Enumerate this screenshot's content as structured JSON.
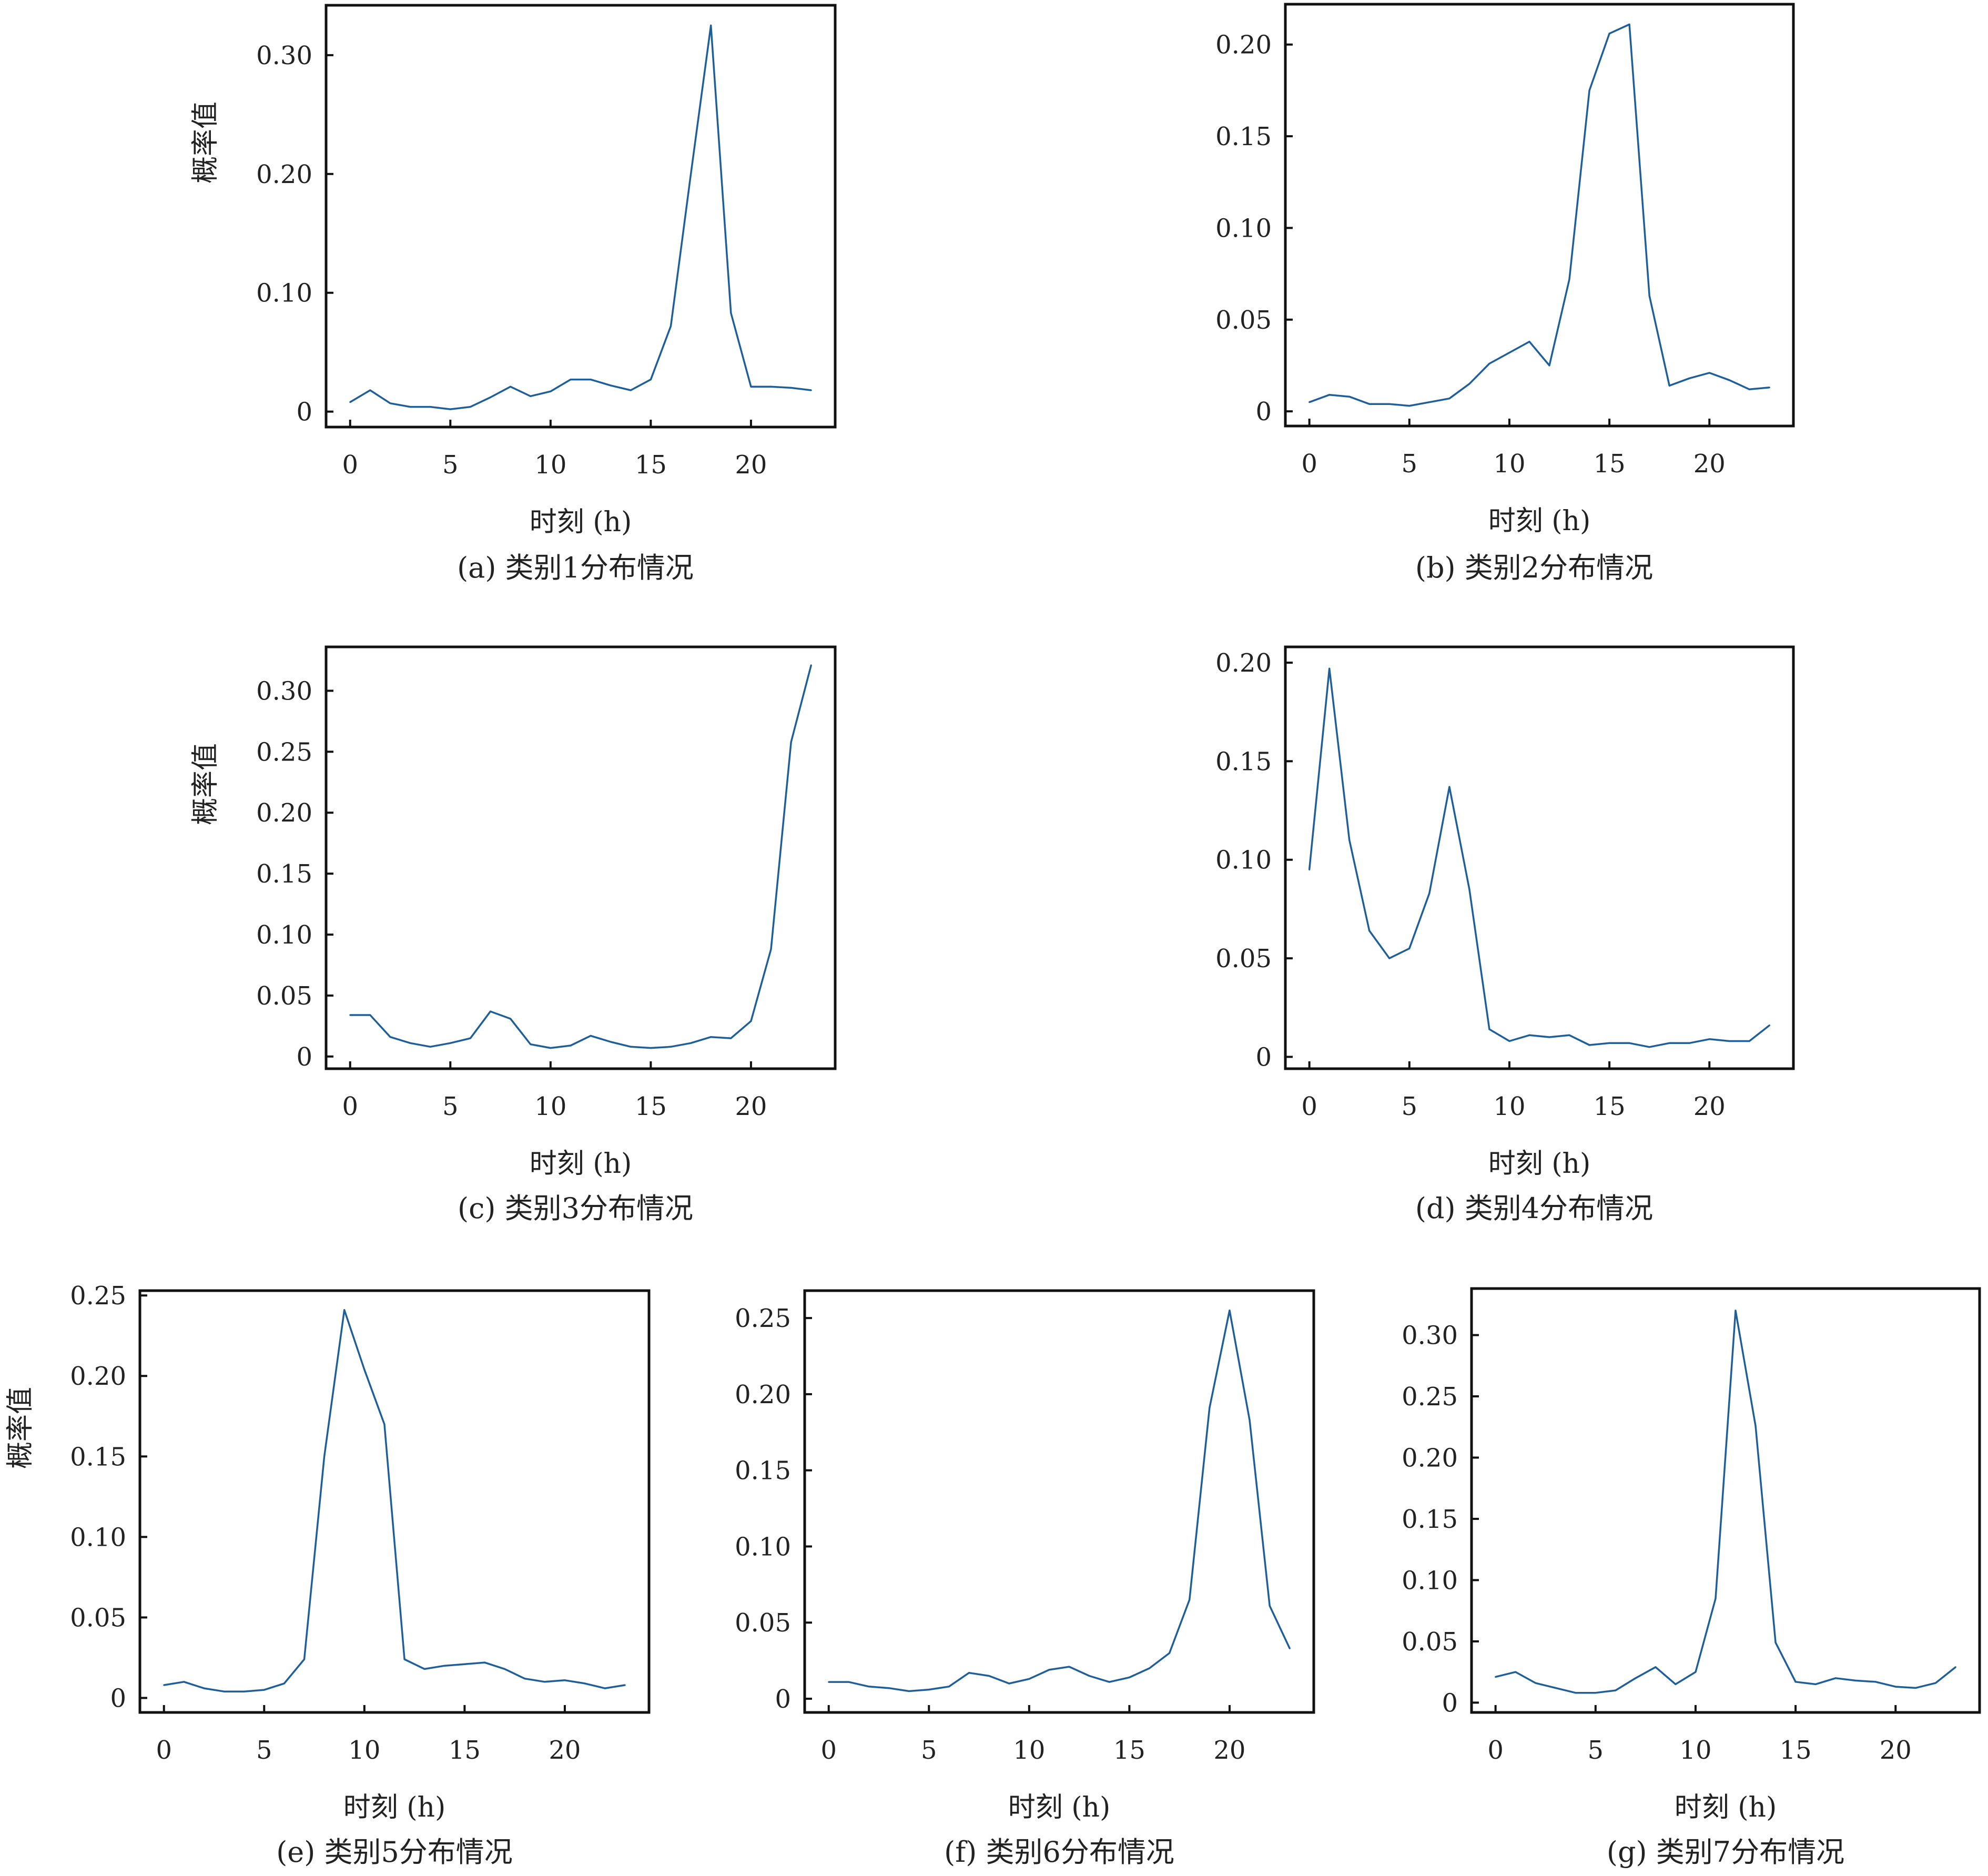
{
  "figure": {
    "ylabel": "概率值",
    "xlabel": "时刻 (h)"
  },
  "chart_data": [
    {
      "type": "line",
      "caption": "(a) 类别1分布情况",
      "xlabel": "时刻 (h)",
      "ylabel": "概率值",
      "xlim": [
        -1.2,
        24.2
      ],
      "ylim": [
        -0.013,
        0.342
      ],
      "xticks": [
        {
          "value": 0,
          "label": "0"
        },
        {
          "value": 5,
          "label": "5"
        },
        {
          "value": 10,
          "label": "10"
        },
        {
          "value": 15,
          "label": "15"
        },
        {
          "value": 20,
          "label": "20"
        }
      ],
      "yticks": [
        {
          "value": 0,
          "label": "0"
        },
        {
          "value": 0.1,
          "label": "0.10"
        },
        {
          "value": 0.2,
          "label": "0.20"
        },
        {
          "value": 0.3,
          "label": "0.30"
        }
      ],
      "x": [
        0,
        1,
        2,
        3,
        4,
        5,
        6,
        7,
        8,
        9,
        10,
        11,
        12,
        13,
        14,
        15,
        16,
        17,
        18,
        19,
        20,
        21,
        22,
        23
      ],
      "values": [
        0.008,
        0.018,
        0.007,
        0.004,
        0.004,
        0.002,
        0.004,
        0.012,
        0.021,
        0.013,
        0.017,
        0.027,
        0.027,
        0.022,
        0.018,
        0.027,
        0.072,
        0.2,
        0.325,
        0.083,
        0.021,
        0.021,
        0.02,
        0.018
      ],
      "color": "#1f5f99"
    },
    {
      "type": "line",
      "caption": "(b) 类别2分布情况",
      "xlabel": "时刻 (h)",
      "ylabel": "",
      "xlim": [
        -1.2,
        24.2
      ],
      "ylim": [
        -0.008,
        0.222
      ],
      "xticks": [
        {
          "value": 0,
          "label": "0"
        },
        {
          "value": 5,
          "label": "5"
        },
        {
          "value": 10,
          "label": "10"
        },
        {
          "value": 15,
          "label": "15"
        },
        {
          "value": 20,
          "label": "20"
        }
      ],
      "yticks": [
        {
          "value": 0,
          "label": "0"
        },
        {
          "value": 0.05,
          "label": "0.05"
        },
        {
          "value": 0.1,
          "label": "0.10"
        },
        {
          "value": 0.15,
          "label": "0.15"
        },
        {
          "value": 0.2,
          "label": "0.20"
        }
      ],
      "x": [
        0,
        1,
        2,
        3,
        4,
        5,
        6,
        7,
        8,
        9,
        10,
        11,
        12,
        13,
        14,
        15,
        16,
        17,
        18,
        19,
        20,
        21,
        22,
        23
      ],
      "values": [
        0.005,
        0.009,
        0.008,
        0.004,
        0.004,
        0.003,
        0.005,
        0.007,
        0.015,
        0.026,
        0.032,
        0.038,
        0.025,
        0.072,
        0.175,
        0.206,
        0.211,
        0.063,
        0.014,
        0.018,
        0.021,
        0.017,
        0.012,
        0.013
      ],
      "color": "#1f5f99"
    },
    {
      "type": "line",
      "caption": "(c) 类别3分布情况",
      "xlabel": "时刻 (h)",
      "ylabel": "概率值",
      "xlim": [
        -1.2,
        24.2
      ],
      "ylim": [
        -0.01,
        0.336
      ],
      "xticks": [
        {
          "value": 0,
          "label": "0"
        },
        {
          "value": 5,
          "label": "5"
        },
        {
          "value": 10,
          "label": "10"
        },
        {
          "value": 15,
          "label": "15"
        },
        {
          "value": 20,
          "label": "20"
        }
      ],
      "yticks": [
        {
          "value": 0,
          "label": "0"
        },
        {
          "value": 0.05,
          "label": "0.05"
        },
        {
          "value": 0.1,
          "label": "0.10"
        },
        {
          "value": 0.15,
          "label": "0.15"
        },
        {
          "value": 0.2,
          "label": "0.20"
        },
        {
          "value": 0.25,
          "label": "0.25"
        },
        {
          "value": 0.3,
          "label": "0.30"
        }
      ],
      "x": [
        0,
        1,
        2,
        3,
        4,
        5,
        6,
        7,
        8,
        9,
        10,
        11,
        12,
        13,
        14,
        15,
        16,
        17,
        18,
        19,
        20,
        21,
        22,
        23
      ],
      "values": [
        0.034,
        0.034,
        0.016,
        0.011,
        0.008,
        0.011,
        0.015,
        0.037,
        0.031,
        0.01,
        0.007,
        0.009,
        0.017,
        0.012,
        0.008,
        0.007,
        0.008,
        0.011,
        0.016,
        0.015,
        0.029,
        0.088,
        0.258,
        0.321
      ],
      "color": "#1f5f99"
    },
    {
      "type": "line",
      "caption": "(d) 类别4分布情况",
      "xlabel": "时刻 (h)",
      "ylabel": "",
      "xlim": [
        -1.2,
        24.2
      ],
      "ylim": [
        -0.006,
        0.208
      ],
      "xticks": [
        {
          "value": 0,
          "label": "0"
        },
        {
          "value": 5,
          "label": "5"
        },
        {
          "value": 10,
          "label": "10"
        },
        {
          "value": 15,
          "label": "15"
        },
        {
          "value": 20,
          "label": "20"
        }
      ],
      "yticks": [
        {
          "value": 0,
          "label": "0"
        },
        {
          "value": 0.05,
          "label": "0.05"
        },
        {
          "value": 0.1,
          "label": "0.10"
        },
        {
          "value": 0.15,
          "label": "0.15"
        },
        {
          "value": 0.2,
          "label": "0.20"
        }
      ],
      "x": [
        0,
        1,
        2,
        3,
        4,
        5,
        6,
        7,
        8,
        9,
        10,
        11,
        12,
        13,
        14,
        15,
        16,
        17,
        18,
        19,
        20,
        21,
        22,
        23
      ],
      "values": [
        0.095,
        0.197,
        0.11,
        0.064,
        0.05,
        0.055,
        0.083,
        0.137,
        0.085,
        0.014,
        0.008,
        0.011,
        0.01,
        0.011,
        0.006,
        0.007,
        0.007,
        0.005,
        0.007,
        0.007,
        0.009,
        0.008,
        0.008,
        0.016
      ],
      "color": "#1f5f99"
    },
    {
      "type": "line",
      "caption": "(e) 类别5分布情况",
      "xlabel": "时刻 (h)",
      "ylabel": "概率值",
      "xlim": [
        -1.2,
        24.2
      ],
      "ylim": [
        -0.009,
        0.253
      ],
      "xticks": [
        {
          "value": 0,
          "label": "0"
        },
        {
          "value": 5,
          "label": "5"
        },
        {
          "value": 10,
          "label": "10"
        },
        {
          "value": 15,
          "label": "15"
        },
        {
          "value": 20,
          "label": "20"
        }
      ],
      "yticks": [
        {
          "value": 0,
          "label": "0"
        },
        {
          "value": 0.05,
          "label": "0.05"
        },
        {
          "value": 0.1,
          "label": "0.10"
        },
        {
          "value": 0.15,
          "label": "0.15"
        },
        {
          "value": 0.2,
          "label": "0.20"
        },
        {
          "value": 0.25,
          "label": "0.25"
        }
      ],
      "x": [
        0,
        1,
        2,
        3,
        4,
        5,
        6,
        7,
        8,
        9,
        10,
        11,
        12,
        13,
        14,
        15,
        16,
        17,
        18,
        19,
        20,
        21,
        22,
        23
      ],
      "values": [
        0.008,
        0.01,
        0.006,
        0.004,
        0.004,
        0.005,
        0.009,
        0.024,
        0.15,
        0.241,
        0.204,
        0.17,
        0.024,
        0.018,
        0.02,
        0.021,
        0.022,
        0.018,
        0.012,
        0.01,
        0.011,
        0.009,
        0.006,
        0.008
      ],
      "color": "#1f5f99"
    },
    {
      "type": "line",
      "caption": "(f) 类别6分布情况",
      "xlabel": "时刻 (h)",
      "ylabel": "",
      "xlim": [
        -1.2,
        24.2
      ],
      "ylim": [
        -0.009,
        0.268
      ],
      "xticks": [
        {
          "value": 0,
          "label": "0"
        },
        {
          "value": 5,
          "label": "5"
        },
        {
          "value": 10,
          "label": "10"
        },
        {
          "value": 15,
          "label": "15"
        },
        {
          "value": 20,
          "label": "20"
        }
      ],
      "yticks": [
        {
          "value": 0,
          "label": "0"
        },
        {
          "value": 0.05,
          "label": "0.05"
        },
        {
          "value": 0.1,
          "label": "0.10"
        },
        {
          "value": 0.15,
          "label": "0.15"
        },
        {
          "value": 0.2,
          "label": "0.20"
        },
        {
          "value": 0.25,
          "label": "0.25"
        }
      ],
      "x": [
        0,
        1,
        2,
        3,
        4,
        5,
        6,
        7,
        8,
        9,
        10,
        11,
        12,
        13,
        14,
        15,
        16,
        17,
        18,
        19,
        20,
        21,
        22,
        23
      ],
      "values": [
        0.011,
        0.011,
        0.008,
        0.007,
        0.005,
        0.006,
        0.008,
        0.017,
        0.015,
        0.01,
        0.013,
        0.019,
        0.021,
        0.015,
        0.011,
        0.014,
        0.02,
        0.03,
        0.065,
        0.191,
        0.255,
        0.183,
        0.061,
        0.033
      ],
      "color": "#1f5f99"
    },
    {
      "type": "line",
      "caption": "(g) 类别7分布情况",
      "xlabel": "时刻 (h)",
      "ylabel": "",
      "xlim": [
        -1.2,
        24.2
      ],
      "ylim": [
        -0.008,
        0.338
      ],
      "xticks": [
        {
          "value": 0,
          "label": "0"
        },
        {
          "value": 5,
          "label": "5"
        },
        {
          "value": 10,
          "label": "10"
        },
        {
          "value": 15,
          "label": "15"
        },
        {
          "value": 20,
          "label": "20"
        }
      ],
      "yticks": [
        {
          "value": 0,
          "label": "0"
        },
        {
          "value": 0.05,
          "label": "0.05"
        },
        {
          "value": 0.1,
          "label": "0.10"
        },
        {
          "value": 0.15,
          "label": "0.15"
        },
        {
          "value": 0.2,
          "label": "0.20"
        },
        {
          "value": 0.25,
          "label": "0.25"
        },
        {
          "value": 0.3,
          "label": "0.30"
        }
      ],
      "x": [
        0,
        1,
        2,
        3,
        4,
        5,
        6,
        7,
        8,
        9,
        10,
        11,
        12,
        13,
        14,
        15,
        16,
        17,
        18,
        19,
        20,
        21,
        22,
        23
      ],
      "values": [
        0.021,
        0.025,
        0.016,
        0.012,
        0.008,
        0.008,
        0.01,
        0.02,
        0.029,
        0.015,
        0.025,
        0.085,
        0.32,
        0.226,
        0.049,
        0.017,
        0.015,
        0.02,
        0.018,
        0.017,
        0.013,
        0.012,
        0.016,
        0.029
      ],
      "color": "#1f5f99"
    }
  ]
}
